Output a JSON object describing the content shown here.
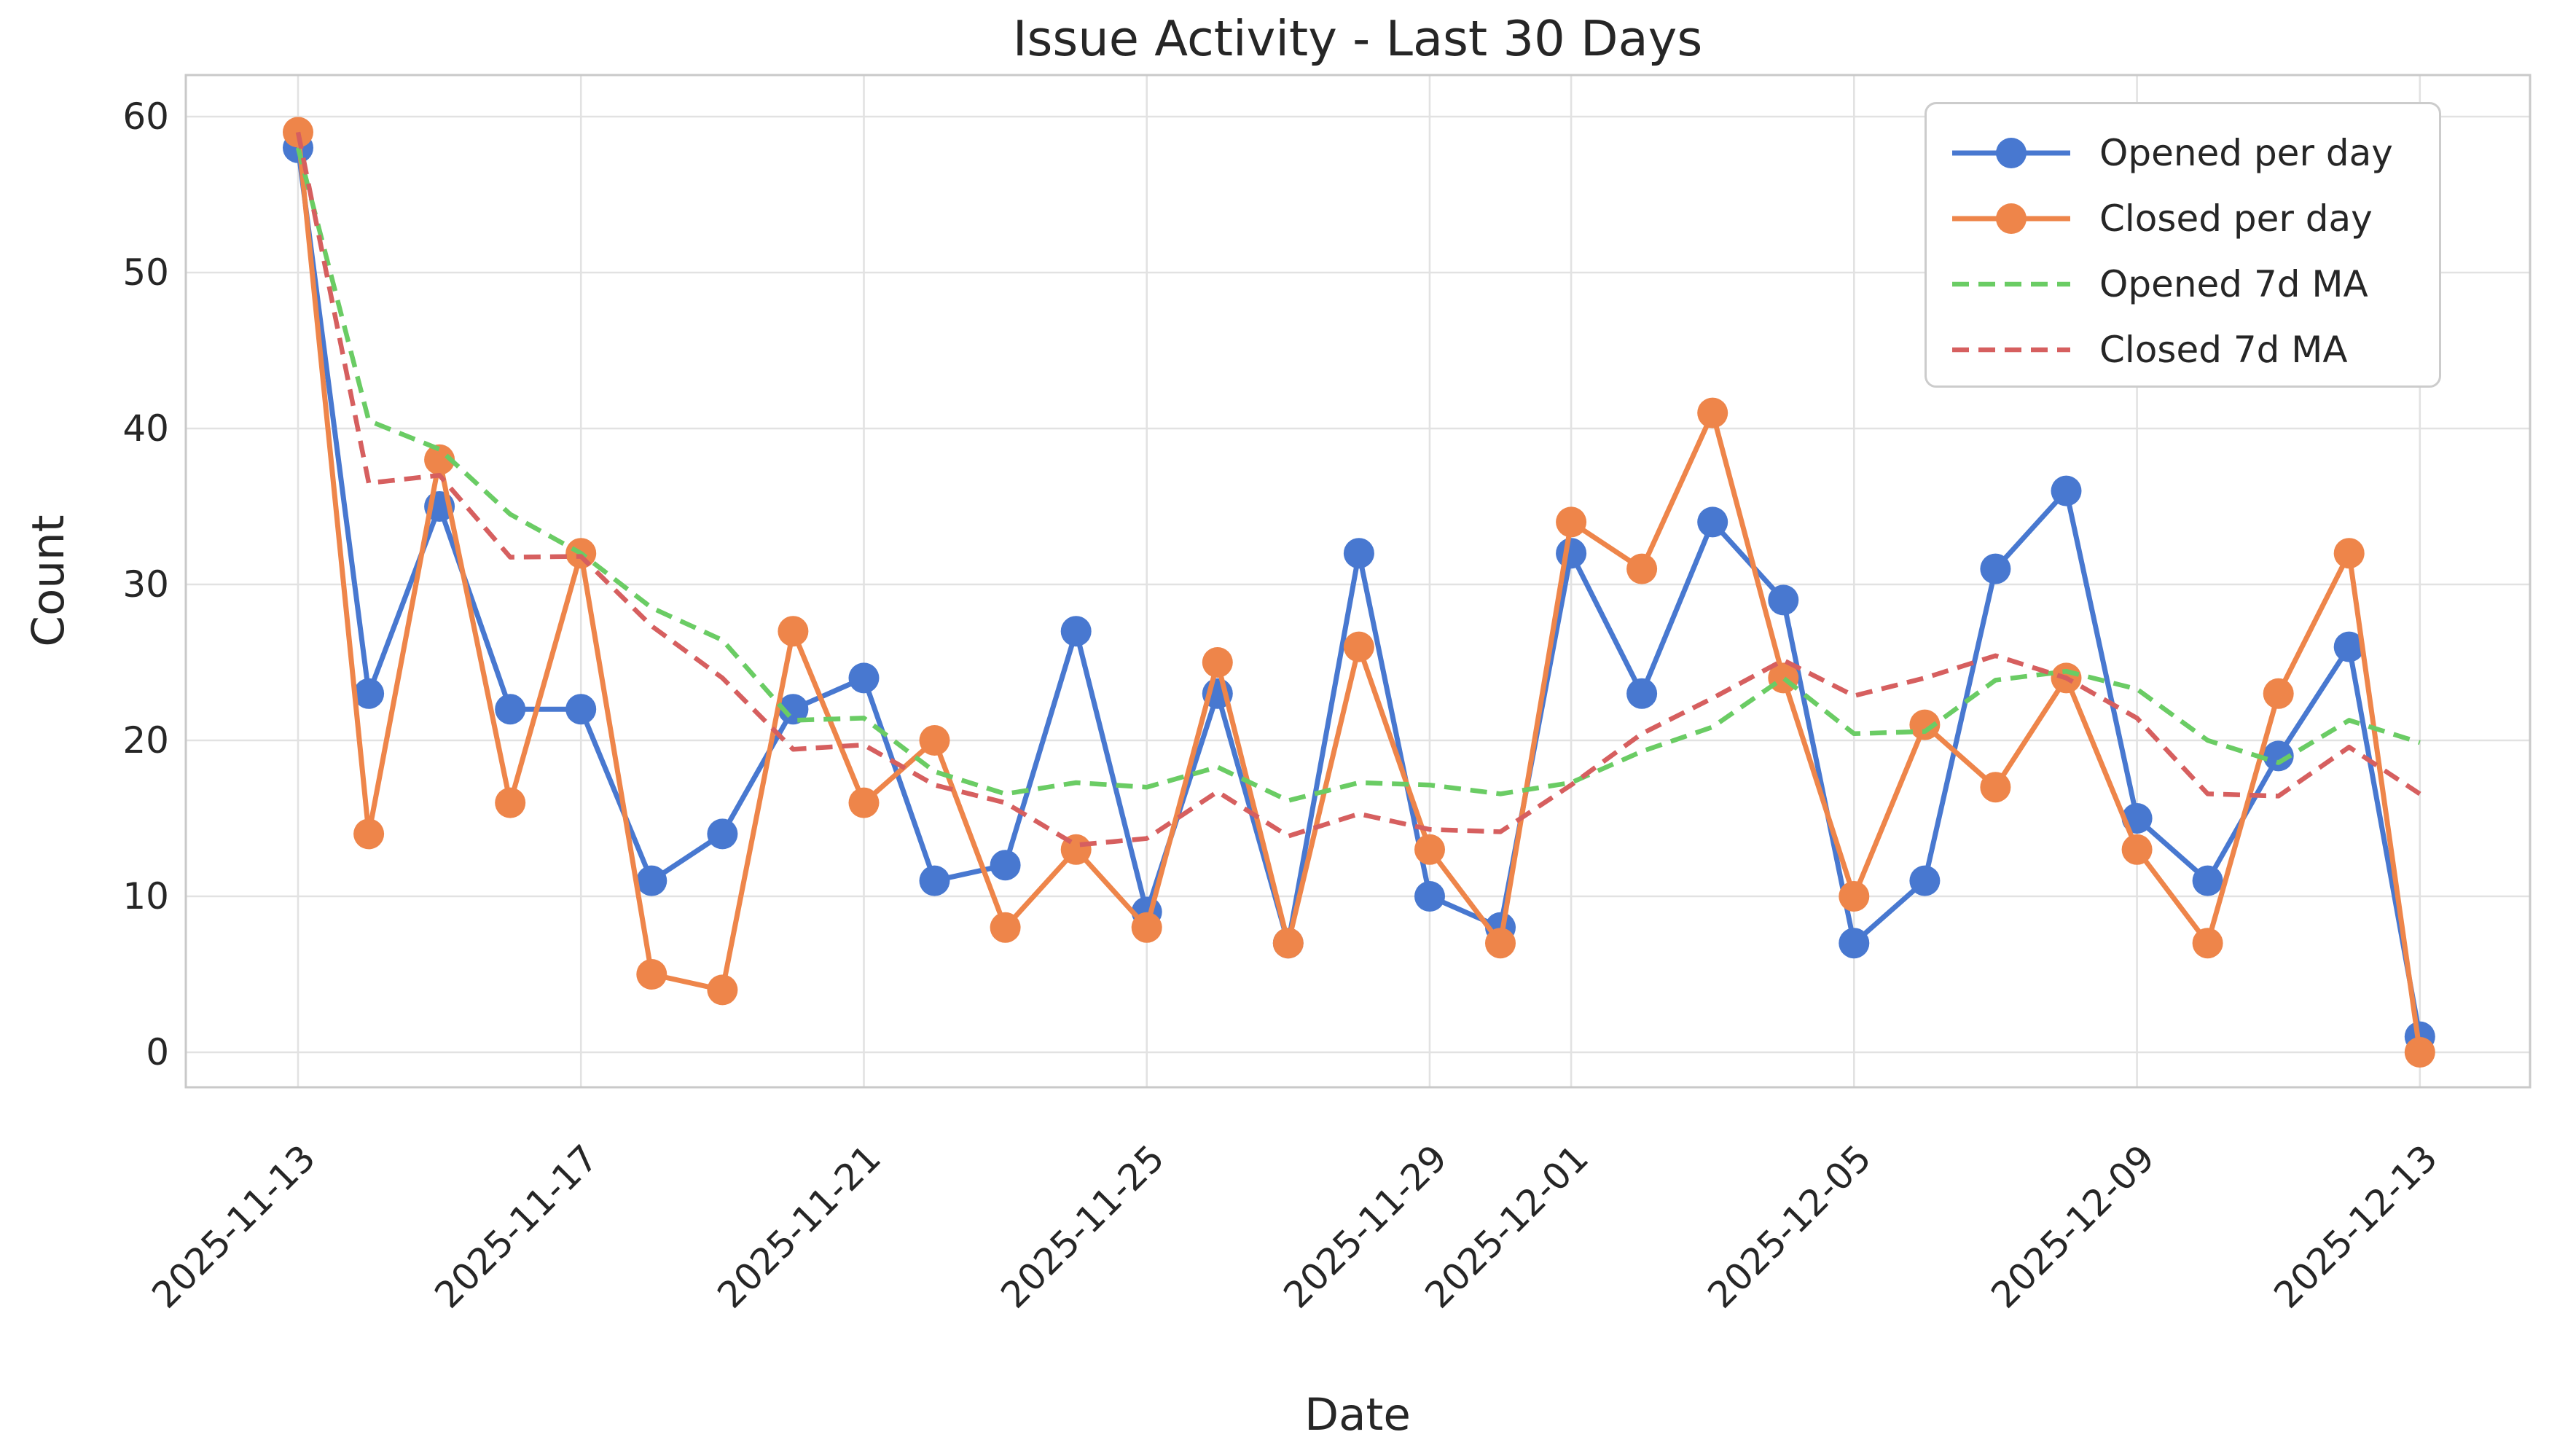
{
  "chart_data": {
    "type": "line",
    "title": "Issue Activity - Last 30 Days",
    "xlabel": "Date",
    "ylabel": "Count",
    "x": [
      "2025-11-13",
      "2025-11-14",
      "2025-11-15",
      "2025-11-16",
      "2025-11-17",
      "2025-11-18",
      "2025-11-19",
      "2025-11-20",
      "2025-11-21",
      "2025-11-22",
      "2025-11-23",
      "2025-11-24",
      "2025-11-25",
      "2025-11-26",
      "2025-11-27",
      "2025-11-28",
      "2025-11-29",
      "2025-11-30",
      "2025-12-01",
      "2025-12-02",
      "2025-12-03",
      "2025-12-04",
      "2025-12-05",
      "2025-12-06",
      "2025-12-07",
      "2025-12-08",
      "2025-12-09",
      "2025-12-10",
      "2025-12-11",
      "2025-12-12",
      "2025-12-13"
    ],
    "series": [
      {
        "name": "Opened per day",
        "color": "#4878D0",
        "style": "solid",
        "marker": "circle",
        "values": [
          58,
          23,
          35,
          22,
          22,
          11,
          14,
          22,
          24,
          11,
          12,
          27,
          9,
          23,
          7,
          32,
          10,
          8,
          32,
          23,
          34,
          29,
          7,
          11,
          31,
          36,
          15,
          11,
          19,
          26,
          1
        ]
      },
      {
        "name": "Closed per day",
        "color": "#EE854A",
        "style": "solid",
        "marker": "circle",
        "values": [
          59,
          14,
          38,
          16,
          32,
          5,
          4,
          27,
          16,
          20,
          8,
          13,
          8,
          25,
          7,
          26,
          13,
          7,
          34,
          31,
          41,
          24,
          10,
          21,
          17,
          24,
          13,
          7,
          23,
          32,
          0
        ]
      },
      {
        "name": "Opened 7d MA",
        "color": "#6ACC64",
        "style": "dashed",
        "marker": "none",
        "values": [
          58,
          40.5,
          38.67,
          34.5,
          32,
          28.5,
          26.43,
          21.29,
          21.43,
          18,
          16.57,
          17.29,
          17,
          18.29,
          16.14,
          17.29,
          17.14,
          16.57,
          17.29,
          19.29,
          20.86,
          24,
          20.43,
          20.57,
          23.86,
          24.43,
          23.29,
          20,
          18.57,
          21.29,
          19.86
        ]
      },
      {
        "name": "Closed 7d MA",
        "color": "#D65F5F",
        "style": "dashed",
        "marker": "none",
        "values": [
          59,
          36.5,
          37,
          31.75,
          31.8,
          27.33,
          24,
          19.43,
          19.71,
          17.14,
          16,
          13.29,
          13.71,
          16.71,
          13.86,
          15.29,
          14.29,
          14.14,
          17.14,
          20.43,
          22.71,
          25.14,
          22.86,
          24,
          25.43,
          24,
          21.43,
          16.57,
          16.43,
          19.57,
          16.57
        ]
      }
    ],
    "yticks": [
      0,
      10,
      20,
      30,
      40,
      50,
      60
    ],
    "ylim": [
      -2.7,
      62.7
    ],
    "xtick_indices": [
      0,
      4,
      8,
      12,
      16,
      18,
      22,
      26,
      30
    ],
    "xtick_labels": [
      "2025-11-13",
      "2025-11-17",
      "2025-11-21",
      "2025-11-25",
      "2025-11-29",
      "2025-12-01",
      "2025-12-05",
      "2025-12-09",
      "2025-12-13"
    ],
    "legend_position": "upper right",
    "grid": true
  },
  "colors": {
    "text": "#262626",
    "grid": "#E2E2E2",
    "spine": "#C9C9C9",
    "background": "#FFFFFF"
  }
}
